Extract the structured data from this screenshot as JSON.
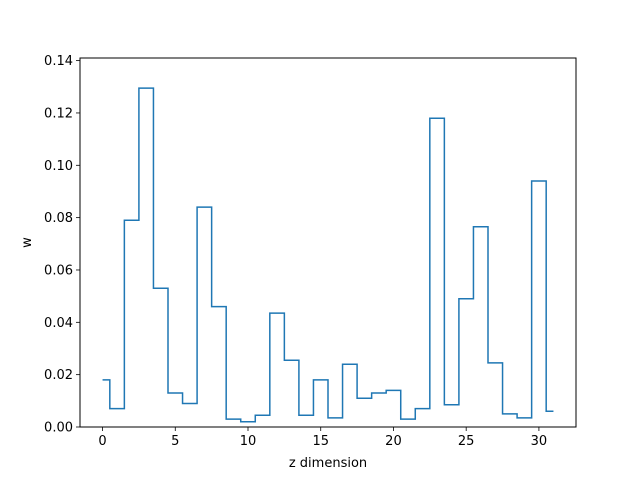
{
  "chart_data": {
    "type": "line",
    "drawstyle": "steps-mid",
    "title": "",
    "xlabel": "z dimension",
    "ylabel": "w",
    "xlim": [
      -1.55,
      32.55
    ],
    "ylim": [
      0.0,
      0.141
    ],
    "xticks": [
      0,
      5,
      10,
      15,
      20,
      25,
      30
    ],
    "xtick_labels": [
      "0",
      "5",
      "10",
      "15",
      "20",
      "25",
      "30"
    ],
    "yticks": [
      0.0,
      0.02,
      0.04,
      0.06,
      0.08,
      0.1,
      0.12,
      0.14
    ],
    "ytick_labels": [
      "0.00",
      "0.02",
      "0.04",
      "0.06",
      "0.08",
      "0.10",
      "0.12",
      "0.14"
    ],
    "grid": false,
    "series": [
      {
        "color": "#1f77b4",
        "x": [
          0,
          1,
          2,
          3,
          4,
          5,
          6,
          7,
          8,
          9,
          10,
          11,
          12,
          13,
          14,
          15,
          16,
          17,
          18,
          19,
          20,
          21,
          22,
          23,
          24,
          25,
          26,
          27,
          28,
          29,
          30,
          31
        ],
        "y": [
          0.018,
          0.007,
          0.079,
          0.1295,
          0.053,
          0.013,
          0.009,
          0.084,
          0.046,
          0.003,
          0.002,
          0.0045,
          0.0435,
          0.0255,
          0.0045,
          0.018,
          0.0035,
          0.024,
          0.011,
          0.013,
          0.014,
          0.003,
          0.007,
          0.118,
          0.0085,
          0.049,
          0.0765,
          0.0245,
          0.005,
          0.0035,
          0.094,
          0.006
        ]
      }
    ]
  }
}
